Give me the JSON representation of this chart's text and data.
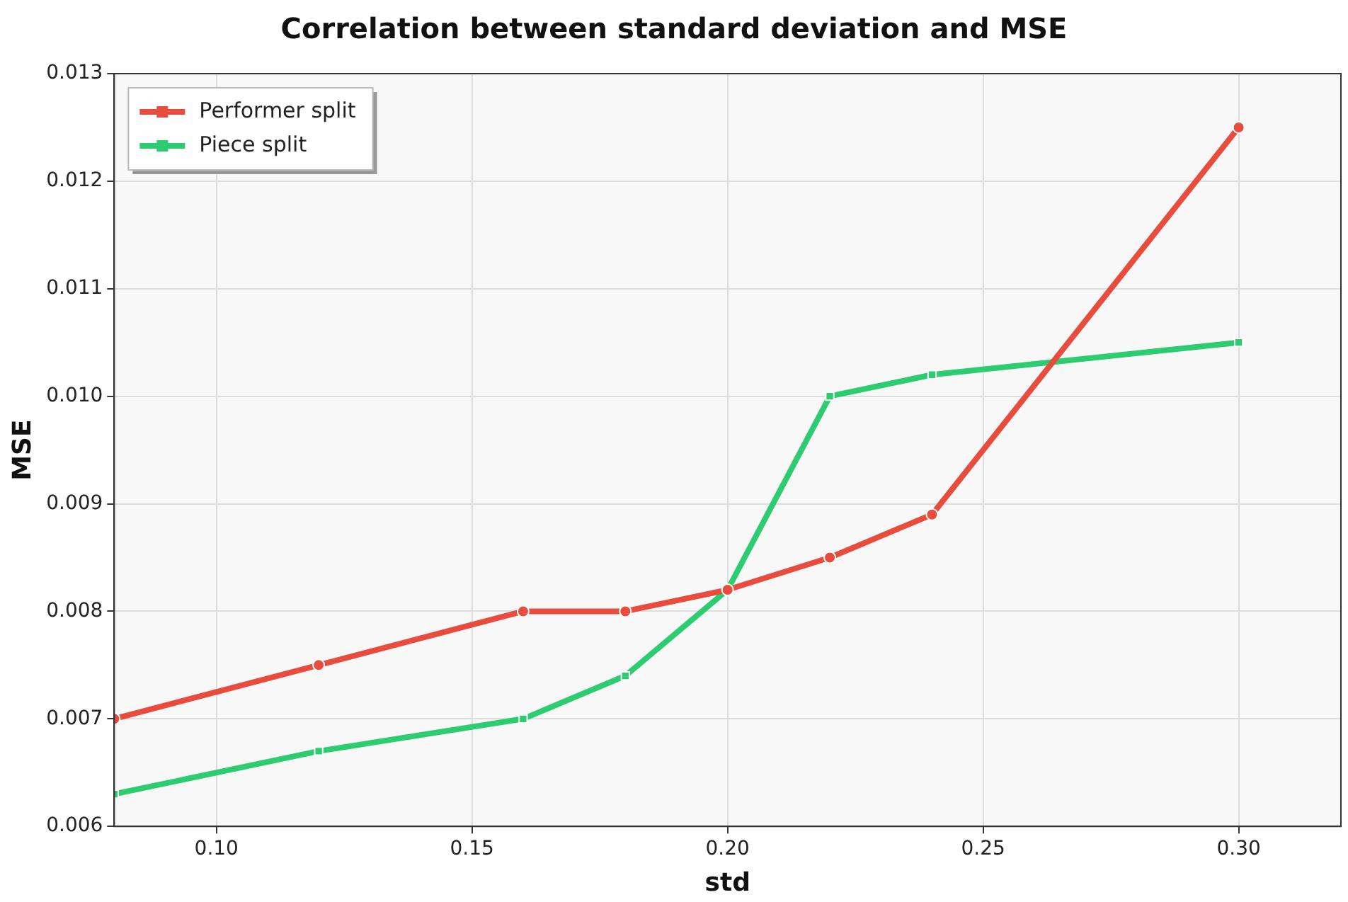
{
  "chart_data": {
    "type": "line",
    "title": "Correlation between standard deviation and MSE",
    "xlabel": "std",
    "ylabel": "MSE",
    "x": [
      0.08,
      0.12,
      0.16,
      0.18,
      0.2,
      0.22,
      0.24,
      0.3
    ],
    "series": [
      {
        "name": "Performer split",
        "color": "#e74c3c",
        "marker": "circle",
        "values": [
          0.007,
          0.0075,
          0.008,
          0.008,
          0.0082,
          0.0085,
          0.0089,
          0.0125
        ]
      },
      {
        "name": "Piece split",
        "color": "#2ecc71",
        "marker": "square",
        "values": [
          0.0063,
          0.0067,
          0.007,
          0.0074,
          0.0082,
          0.01,
          0.0102,
          0.0105
        ]
      }
    ],
    "xlim": [
      0.08,
      0.32
    ],
    "xticks": [
      {
        "value": 0.1,
        "label": "0.10"
      },
      {
        "value": 0.15,
        "label": "0.15"
      },
      {
        "value": 0.2,
        "label": "0.20"
      },
      {
        "value": 0.25,
        "label": "0.25"
      },
      {
        "value": 0.3,
        "label": "0.30"
      }
    ],
    "ylim": [
      0.006,
      0.013
    ],
    "yticks": [
      0.006,
      {
        "value": 0.007,
        "label": "0.007"
      },
      0.008,
      0.009,
      {
        "value": 0.01,
        "label": "0.010"
      },
      0.011,
      0.012,
      0.013
    ],
    "grid": true,
    "legend": "top left",
    "line_style": "solid"
  }
}
